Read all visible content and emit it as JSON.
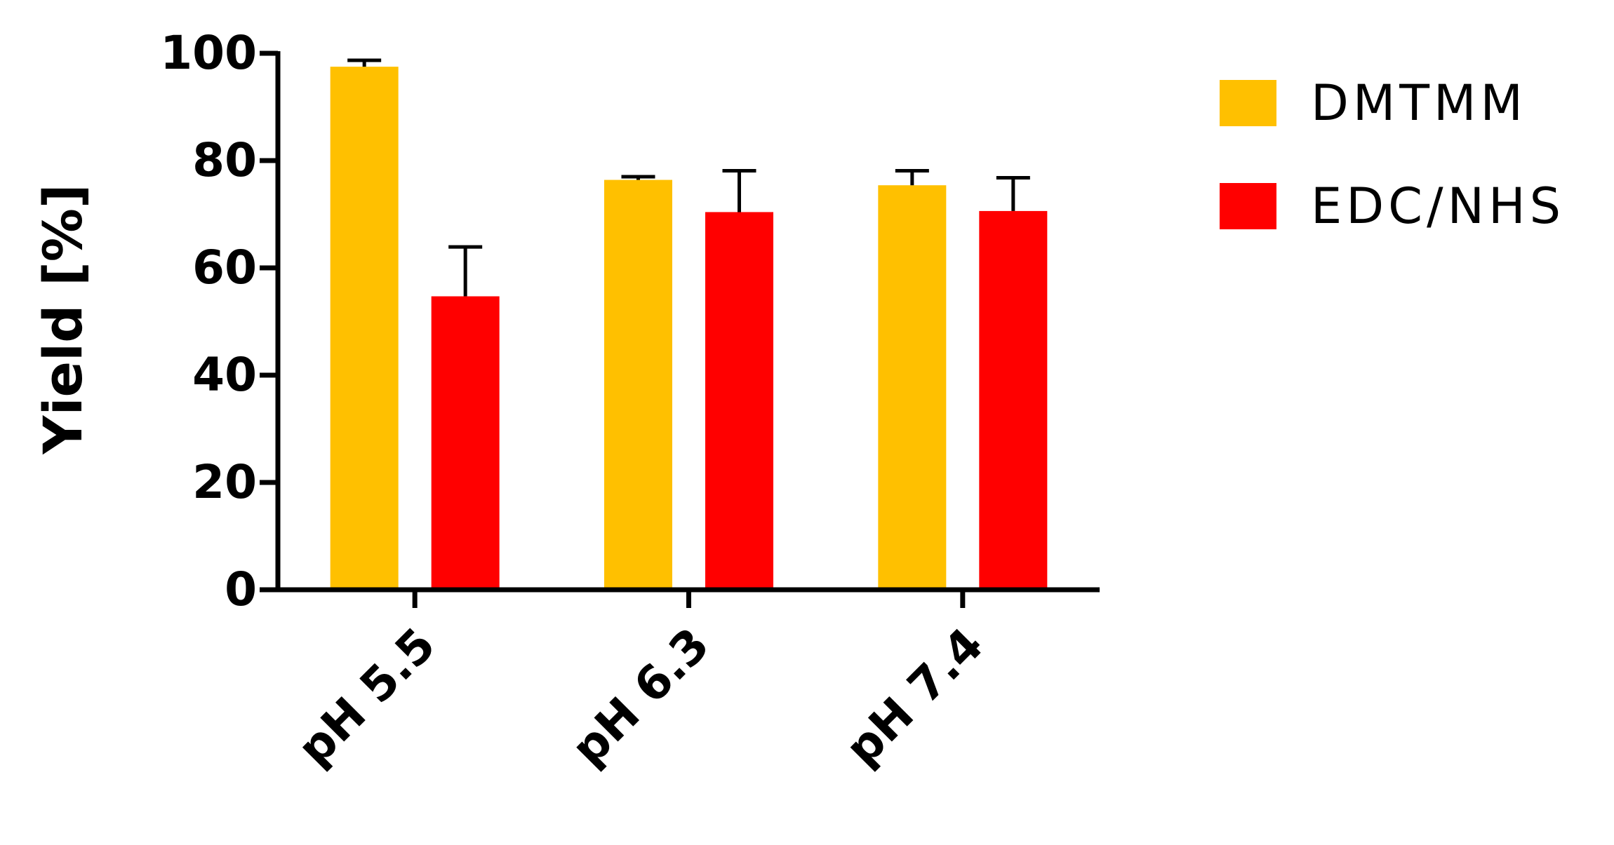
{
  "chart_data": {
    "type": "bar",
    "y_label": "Yield [%]",
    "categories": [
      "pH 5.5",
      "pH 6.3",
      "pH 7.4"
    ],
    "series": [
      {
        "name": "DMTMM",
        "color": "#ffc000",
        "values": [
          97.5,
          76.4,
          75.4
        ],
        "errors": [
          1.2,
          0.6,
          2.7
        ]
      },
      {
        "name": "EDC/NHS",
        "color": "#ff0000",
        "values": [
          54.7,
          70.4,
          70.6
        ],
        "errors": [
          9.2,
          7.7,
          6.2
        ]
      }
    ],
    "ylim": [
      0,
      100
    ],
    "yticks": [
      0,
      20,
      40,
      60,
      80,
      100
    ],
    "error_bars": "upper",
    "legend": "right"
  }
}
